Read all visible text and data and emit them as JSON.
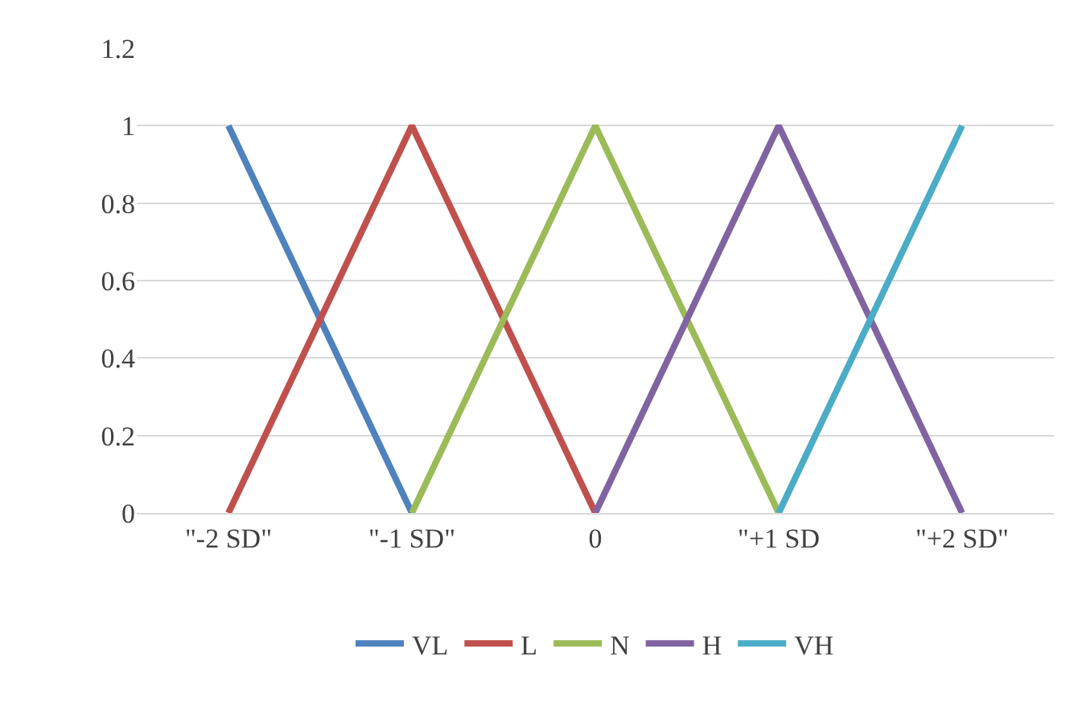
{
  "chart_data": {
    "type": "line",
    "categories": [
      "\"-2 SD\"",
      "\"-1 SD\"",
      "0",
      "\"+1 SD",
      "\"+2 SD\""
    ],
    "series": [
      {
        "name": "VL",
        "color": "#4f81bd",
        "values": [
          1,
          0,
          null,
          null,
          null
        ]
      },
      {
        "name": "L",
        "color": "#c0504d",
        "values": [
          0,
          1,
          0,
          null,
          null
        ]
      },
      {
        "name": "N",
        "color": "#9bbb59",
        "values": [
          null,
          0,
          1,
          0,
          null
        ]
      },
      {
        "name": "H",
        "color": "#8064a2",
        "values": [
          null,
          null,
          0,
          1,
          0
        ]
      },
      {
        "name": "VH",
        "color": "#4bacc6",
        "values": [
          null,
          null,
          null,
          0,
          1
        ]
      }
    ],
    "ylim": [
      0,
      1.2
    ],
    "yticks": [
      0,
      0.2,
      0.4,
      0.6,
      0.8,
      1,
      1.2
    ],
    "grid": "y",
    "legend": "bottom",
    "marker": "none",
    "line_style": "solid"
  }
}
